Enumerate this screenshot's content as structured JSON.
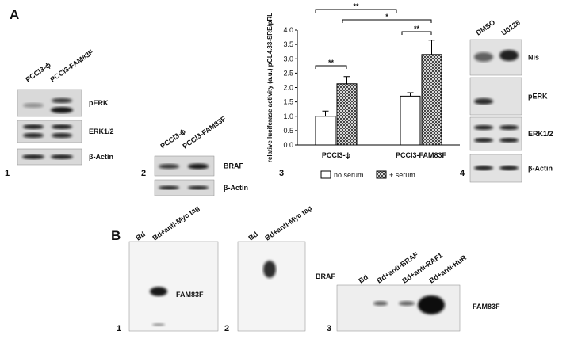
{
  "panel_a": {
    "label": "A",
    "blot_1": {
      "number": "1",
      "lanes": [
        "PCCl3-ϕ",
        "PCCl3-FAM83F"
      ],
      "rows": [
        "pERK",
        "ERK1/2",
        "β-Actin"
      ]
    },
    "blot_2": {
      "number": "2",
      "lanes": [
        "PCCl3-ϕ",
        "PCCl3-FAM83F"
      ],
      "rows": [
        "BRAF",
        "β-Actin"
      ]
    },
    "chart_number": "3",
    "blot_4": {
      "number": "4",
      "lanes": [
        "DMSO",
        "U0126"
      ],
      "rows": [
        "Nis",
        "pERK",
        "ERK1/2",
        "β-Actin"
      ]
    }
  },
  "chart_data": {
    "type": "bar",
    "y_label": "relative luciferase activity (a.u.) pGL4.33-SRE/pRL",
    "categories": [
      "PCCl3-ϕ",
      "PCCl3-FAM83F"
    ],
    "series": [
      {
        "name": "no serum",
        "color": "#ffffff",
        "values": [
          1.0,
          1.7
        ],
        "errors": [
          0.18,
          0.12
        ]
      },
      {
        "name": "+ serum",
        "color": "hatch",
        "values": [
          2.13,
          3.15
        ],
        "errors": [
          0.25,
          0.5
        ]
      }
    ],
    "ylim": [
      0,
      4
    ],
    "yticks": [
      {
        "value": 0,
        "label": "0.0"
      },
      0.5,
      {
        "value": 1,
        "label": "1.0"
      },
      1.5,
      {
        "value": 2,
        "label": "2.0"
      },
      2.5,
      {
        "value": 3,
        "label": "3.0"
      },
      3.5,
      {
        "value": 4,
        "label": "4.0"
      }
    ],
    "annotations": [
      "**",
      "*",
      "**",
      "**"
    ]
  },
  "panel_b": {
    "label": "B",
    "blot_1": {
      "number": "1",
      "lanes": [
        "Bd",
        "Bd+anti-Myc tag"
      ],
      "band": "FAM83F"
    },
    "blot_2": {
      "number": "2",
      "lanes": [
        "Bd",
        "Bd+anti-Myc tag"
      ],
      "band": "BRAF"
    },
    "blot_3": {
      "number": "3",
      "lanes": [
        "Bd",
        "Bd+anti-BRAF",
        "Bd+anti-RAF1",
        "Bd+anti-HuR"
      ],
      "band": "FAM83F"
    }
  }
}
